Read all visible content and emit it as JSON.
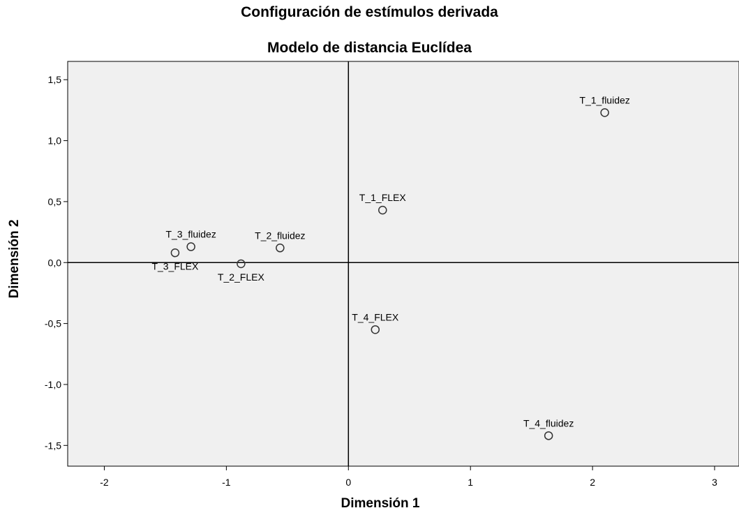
{
  "chart_data": {
    "type": "scatter",
    "title": "Configuración de estímulos derivada",
    "subtitle": "Modelo de distancia Euclídea",
    "xlabel": "Dimensión 1",
    "ylabel": "Dimensión 2",
    "xlim": [
      -2.3,
      3.2
    ],
    "ylim": [
      -1.67,
      1.65
    ],
    "xticks": [
      {
        "value": -2,
        "label": "-2"
      },
      {
        "value": -1,
        "label": "-1"
      },
      {
        "value": 0,
        "label": "0"
      },
      {
        "value": 1,
        "label": "1"
      },
      {
        "value": 2,
        "label": "2"
      },
      {
        "value": 3,
        "label": "3"
      }
    ],
    "yticks": [
      {
        "value": 1.5,
        "label": "1,5"
      },
      {
        "value": 1.0,
        "label": "1,0"
      },
      {
        "value": 0.5,
        "label": "0,5"
      },
      {
        "value": 0.0,
        "label": "0,0"
      },
      {
        "value": -0.5,
        "label": "-0,5"
      },
      {
        "value": -1.0,
        "label": "-1,0"
      },
      {
        "value": -1.5,
        "label": "-1,5"
      }
    ],
    "reference_lines": {
      "x": 0,
      "y": 0
    },
    "points": [
      {
        "label": "T_1_fluidez",
        "x": 2.1,
        "y": 1.23,
        "label_pos": "above"
      },
      {
        "label": "T_1_FLEX",
        "x": 0.28,
        "y": 0.43,
        "label_pos": "above"
      },
      {
        "label": "T_3_fluidez",
        "x": -1.29,
        "y": 0.13,
        "label_pos": "above"
      },
      {
        "label": "T_3_FLEX",
        "x": -1.42,
        "y": 0.08,
        "label_pos": "below"
      },
      {
        "label": "T_2_fluidez",
        "x": -0.56,
        "y": 0.12,
        "label_pos": "above"
      },
      {
        "label": "T_2_FLEX",
        "x": -0.88,
        "y": -0.01,
        "label_pos": "below"
      },
      {
        "label": "T_4_FLEX",
        "x": 0.22,
        "y": -0.55,
        "label_pos": "above"
      },
      {
        "label": "T_4_fluidez",
        "x": 1.64,
        "y": -1.42,
        "label_pos": "above"
      }
    ],
    "grid": false,
    "colors": {
      "plot_background": "#f0f0f0",
      "marker_stroke": "#333333",
      "axis": "#000000"
    }
  }
}
